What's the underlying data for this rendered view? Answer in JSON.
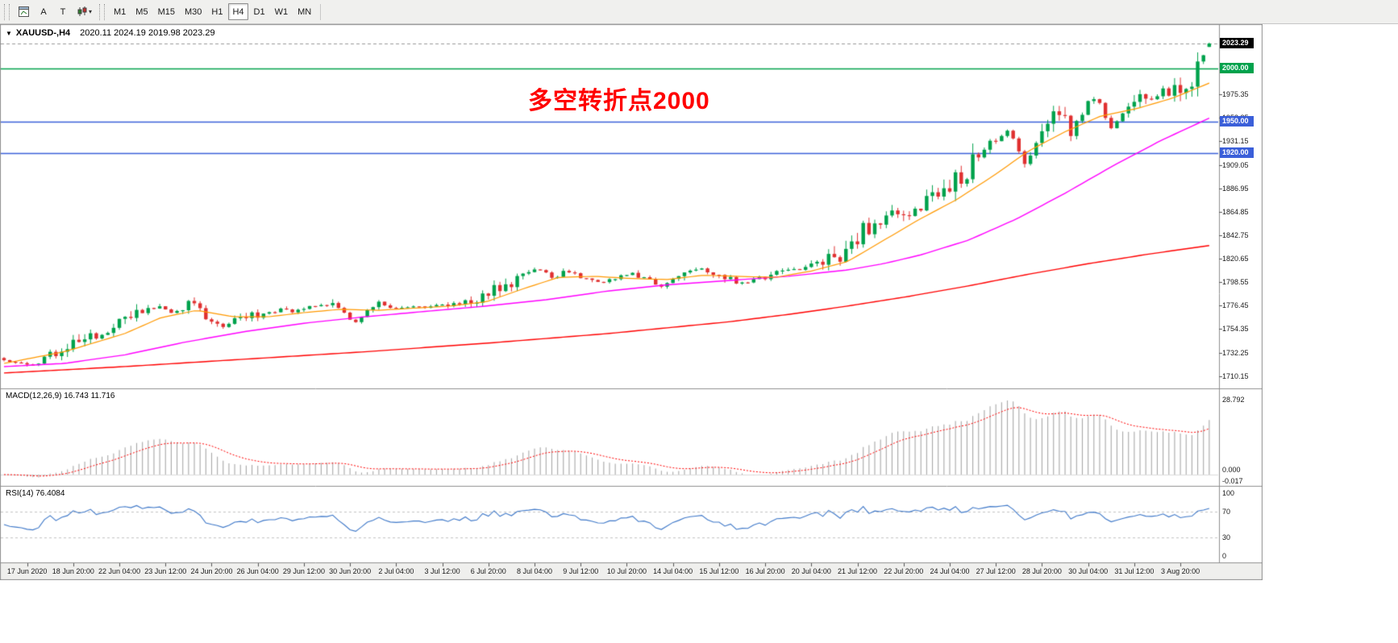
{
  "toolbar": {
    "buttons": {
      "a": "A",
      "t": "T",
      "caret": "▾"
    },
    "timeframes": [
      "M1",
      "M5",
      "M15",
      "M30",
      "H1",
      "H4",
      "D1",
      "W1",
      "MN"
    ],
    "active_timeframe": "H4"
  },
  "chart": {
    "menu_arrow": "▼",
    "title": "XAUUSD-,H4",
    "ohlc": "2020.11 2024.19 2019.98 2023.29",
    "annotation": {
      "text": "多空转折点2000",
      "color": "#FF0000"
    },
    "current_price": {
      "value": 2023.29,
      "label": "2023.29",
      "bg": "#000000"
    },
    "price_lines": [
      {
        "price": 2000.0,
        "label": "2000.00",
        "color": "#00A24C"
      },
      {
        "price": 1950.0,
        "label": "1950.00",
        "color": "#3B5FD9"
      },
      {
        "price": 1920.0,
        "label": "1920.00",
        "color": "#3B5FD9"
      }
    ],
    "price_axis_labels": [
      "1975.35",
      "1953.25",
      "1931.15",
      "1909.05",
      "1886.95",
      "1864.85",
      "1842.75",
      "1820.65",
      "1798.55",
      "1776.45",
      "1754.35",
      "1732.25",
      "1710.15"
    ],
    "time_axis_labels": [
      "17 Jun 2020",
      "18 Jun 20:00",
      "22 Jun 04:00",
      "23 Jun 12:00",
      "24 Jun 20:00",
      "26 Jun 04:00",
      "29 Jun 12:00",
      "30 Jun 20:00",
      "2 Jul 04:00",
      "3 Jul 12:00",
      "6 Jul 20:00",
      "8 Jul 04:00",
      "9 Jul 12:00",
      "10 Jul 20:00",
      "14 Jul 04:00",
      "15 Jul 12:00",
      "16 Jul 20:00",
      "20 Jul 04:00",
      "21 Jul 12:00",
      "22 Jul 20:00",
      "24 Jul 04:00",
      "27 Jul 12:00",
      "28 Jul 20:00",
      "30 Jul 04:00",
      "31 Jul 12:00",
      "3 Aug 20:00"
    ]
  },
  "indicators": {
    "macd": {
      "header": "MACD(12,26,9) 16.743 11.716",
      "max_label": "28.792",
      "zero_label": "0.000",
      "min_label": "-0.017"
    },
    "rsi": {
      "header": "RSI(14) 76.4084",
      "levels": [
        "100",
        "70",
        "30",
        "0"
      ]
    }
  },
  "chart_data": {
    "type": "candlestick",
    "symbol": "XAUUSD",
    "timeframe": "H4",
    "candle_count": 210,
    "price_range": [
      1700,
      2040
    ],
    "current_bar": {
      "open": 2020.11,
      "high": 2024.19,
      "low": 2019.98,
      "close": 2023.29
    },
    "close_waypoints": [
      [
        0,
        1727
      ],
      [
        0.01,
        1723
      ],
      [
        0.02,
        1721
      ],
      [
        0.03,
        1726
      ],
      [
        0.04,
        1731
      ],
      [
        0.05,
        1736
      ],
      [
        0.06,
        1742
      ],
      [
        0.07,
        1746
      ],
      [
        0.08,
        1751
      ],
      [
        0.09,
        1756
      ],
      [
        0.1,
        1760
      ],
      [
        0.11,
        1767
      ],
      [
        0.12,
        1772
      ],
      [
        0.13,
        1777
      ],
      [
        0.135,
        1772
      ],
      [
        0.14,
        1768
      ],
      [
        0.15,
        1773
      ],
      [
        0.155,
        1779
      ],
      [
        0.16,
        1775
      ],
      [
        0.165,
        1768
      ],
      [
        0.17,
        1762
      ],
      [
        0.18,
        1757
      ],
      [
        0.19,
        1762
      ],
      [
        0.2,
        1766
      ],
      [
        0.21,
        1768
      ],
      [
        0.22,
        1770
      ],
      [
        0.23,
        1772
      ],
      [
        0.24,
        1771
      ],
      [
        0.25,
        1773
      ],
      [
        0.26,
        1776
      ],
      [
        0.27,
        1778
      ],
      [
        0.28,
        1772
      ],
      [
        0.285,
        1765
      ],
      [
        0.29,
        1759
      ],
      [
        0.295,
        1765
      ],
      [
        0.3,
        1772
      ],
      [
        0.31,
        1779
      ],
      [
        0.32,
        1776
      ],
      [
        0.33,
        1773
      ],
      [
        0.34,
        1775
      ],
      [
        0.35,
        1776
      ],
      [
        0.36,
        1777
      ],
      [
        0.37,
        1776
      ],
      [
        0.38,
        1778
      ],
      [
        0.39,
        1782
      ],
      [
        0.4,
        1786
      ],
      [
        0.41,
        1792
      ],
      [
        0.42,
        1799
      ],
      [
        0.43,
        1805
      ],
      [
        0.44,
        1810
      ],
      [
        0.45,
        1806
      ],
      [
        0.455,
        1802
      ],
      [
        0.46,
        1806
      ],
      [
        0.47,
        1809
      ],
      [
        0.48,
        1803
      ],
      [
        0.49,
        1798
      ],
      [
        0.5,
        1800
      ],
      [
        0.51,
        1803
      ],
      [
        0.52,
        1806
      ],
      [
        0.53,
        1804
      ],
      [
        0.54,
        1798
      ],
      [
        0.545,
        1795
      ],
      [
        0.55,
        1799
      ],
      [
        0.56,
        1804
      ],
      [
        0.57,
        1809
      ],
      [
        0.58,
        1811
      ],
      [
        0.59,
        1807
      ],
      [
        0.6,
        1803
      ],
      [
        0.61,
        1798
      ],
      [
        0.615,
        1796
      ],
      [
        0.62,
        1800
      ],
      [
        0.63,
        1804
      ],
      [
        0.64,
        1807
      ],
      [
        0.65,
        1809
      ],
      [
        0.66,
        1811
      ],
      [
        0.67,
        1813
      ],
      [
        0.68,
        1817
      ],
      [
        0.69,
        1823
      ],
      [
        0.7,
        1830
      ],
      [
        0.705,
        1838
      ],
      [
        0.71,
        1845
      ],
      [
        0.72,
        1851
      ],
      [
        0.73,
        1857
      ],
      [
        0.74,
        1863
      ],
      [
        0.745,
        1860
      ],
      [
        0.75,
        1866
      ],
      [
        0.76,
        1871
      ],
      [
        0.77,
        1878
      ],
      [
        0.78,
        1887
      ],
      [
        0.79,
        1896
      ],
      [
        0.8,
        1905
      ],
      [
        0.81,
        1916
      ],
      [
        0.82,
        1928
      ],
      [
        0.83,
        1940
      ],
      [
        0.835,
        1943
      ],
      [
        0.84,
        1925
      ],
      [
        0.845,
        1910
      ],
      [
        0.85,
        1918
      ],
      [
        0.855,
        1928
      ],
      [
        0.86,
        1937
      ],
      [
        0.865,
        1944
      ],
      [
        0.87,
        1951
      ],
      [
        0.875,
        1957
      ],
      [
        0.88,
        1950
      ],
      [
        0.885,
        1943
      ],
      [
        0.89,
        1950
      ],
      [
        0.895,
        1959
      ],
      [
        0.9,
        1968
      ],
      [
        0.905,
        1974
      ],
      [
        0.91,
        1963
      ],
      [
        0.915,
        1950
      ],
      [
        0.92,
        1944
      ],
      [
        0.925,
        1953
      ],
      [
        0.93,
        1961
      ],
      [
        0.935,
        1968
      ],
      [
        0.94,
        1974
      ],
      [
        0.945,
        1969
      ],
      [
        0.95,
        1965
      ],
      [
        0.955,
        1971
      ],
      [
        0.96,
        1977
      ],
      [
        0.965,
        1981
      ],
      [
        0.97,
        1976
      ],
      [
        0.975,
        1973
      ],
      [
        0.98,
        1978
      ],
      [
        0.985,
        1988
      ],
      [
        0.99,
        2002
      ],
      [
        0.995,
        2018
      ],
      [
        1,
        2023.3
      ]
    ],
    "overlays": {
      "ma_slow": {
        "color": "#FF0000",
        "waypoints": [
          [
            0,
            1713
          ],
          [
            0.1,
            1719
          ],
          [
            0.2,
            1726
          ],
          [
            0.3,
            1733
          ],
          [
            0.4,
            1741
          ],
          [
            0.5,
            1750
          ],
          [
            0.6,
            1761
          ],
          [
            0.65,
            1768
          ],
          [
            0.7,
            1776
          ],
          [
            0.75,
            1785
          ],
          [
            0.8,
            1795
          ],
          [
            0.85,
            1806
          ],
          [
            0.9,
            1816
          ],
          [
            0.95,
            1825
          ],
          [
            1,
            1833
          ]
        ]
      },
      "ma_mid": {
        "color": "#FF00FF",
        "waypoints": [
          [
            0,
            1719
          ],
          [
            0.05,
            1722
          ],
          [
            0.1,
            1730
          ],
          [
            0.15,
            1742
          ],
          [
            0.2,
            1752
          ],
          [
            0.25,
            1760
          ],
          [
            0.3,
            1766
          ],
          [
            0.35,
            1771
          ],
          [
            0.4,
            1776
          ],
          [
            0.45,
            1782
          ],
          [
            0.5,
            1790
          ],
          [
            0.55,
            1796
          ],
          [
            0.6,
            1800
          ],
          [
            0.65,
            1804
          ],
          [
            0.7,
            1810
          ],
          [
            0.73,
            1816
          ],
          [
            0.76,
            1824
          ],
          [
            0.8,
            1838
          ],
          [
            0.84,
            1858
          ],
          [
            0.88,
            1882
          ],
          [
            0.92,
            1908
          ],
          [
            0.96,
            1932
          ],
          [
            1,
            1953
          ]
        ]
      },
      "ma_fast": {
        "color": "#FF9900",
        "waypoints": [
          [
            0,
            1722
          ],
          [
            0.05,
            1733
          ],
          [
            0.1,
            1750
          ],
          [
            0.13,
            1765
          ],
          [
            0.16,
            1772
          ],
          [
            0.19,
            1766
          ],
          [
            0.22,
            1766
          ],
          [
            0.25,
            1770
          ],
          [
            0.28,
            1773
          ],
          [
            0.31,
            1772
          ],
          [
            0.34,
            1774
          ],
          [
            0.37,
            1776
          ],
          [
            0.4,
            1780
          ],
          [
            0.43,
            1792
          ],
          [
            0.46,
            1803
          ],
          [
            0.49,
            1804
          ],
          [
            0.52,
            1802
          ],
          [
            0.55,
            1801
          ],
          [
            0.58,
            1805
          ],
          [
            0.61,
            1804
          ],
          [
            0.64,
            1803
          ],
          [
            0.67,
            1809
          ],
          [
            0.7,
            1818
          ],
          [
            0.73,
            1838
          ],
          [
            0.76,
            1858
          ],
          [
            0.79,
            1876
          ],
          [
            0.82,
            1898
          ],
          [
            0.85,
            1922
          ],
          [
            0.88,
            1940
          ],
          [
            0.91,
            1955
          ],
          [
            0.94,
            1962
          ],
          [
            0.97,
            1972
          ],
          [
            1,
            1986
          ]
        ]
      }
    },
    "macd": {
      "params": [
        12,
        26,
        9
      ],
      "peak": 28.792,
      "bar_color": "#A8A8A8",
      "signal_color": "#FF0000"
    },
    "rsi": {
      "period": 14,
      "last": 76.4084,
      "color": "#3E78C9",
      "levels": [
        70,
        30
      ]
    },
    "colors": {
      "bull": "#00A24C",
      "bear": "#E03030",
      "grid": "#C8C8C8"
    }
  }
}
